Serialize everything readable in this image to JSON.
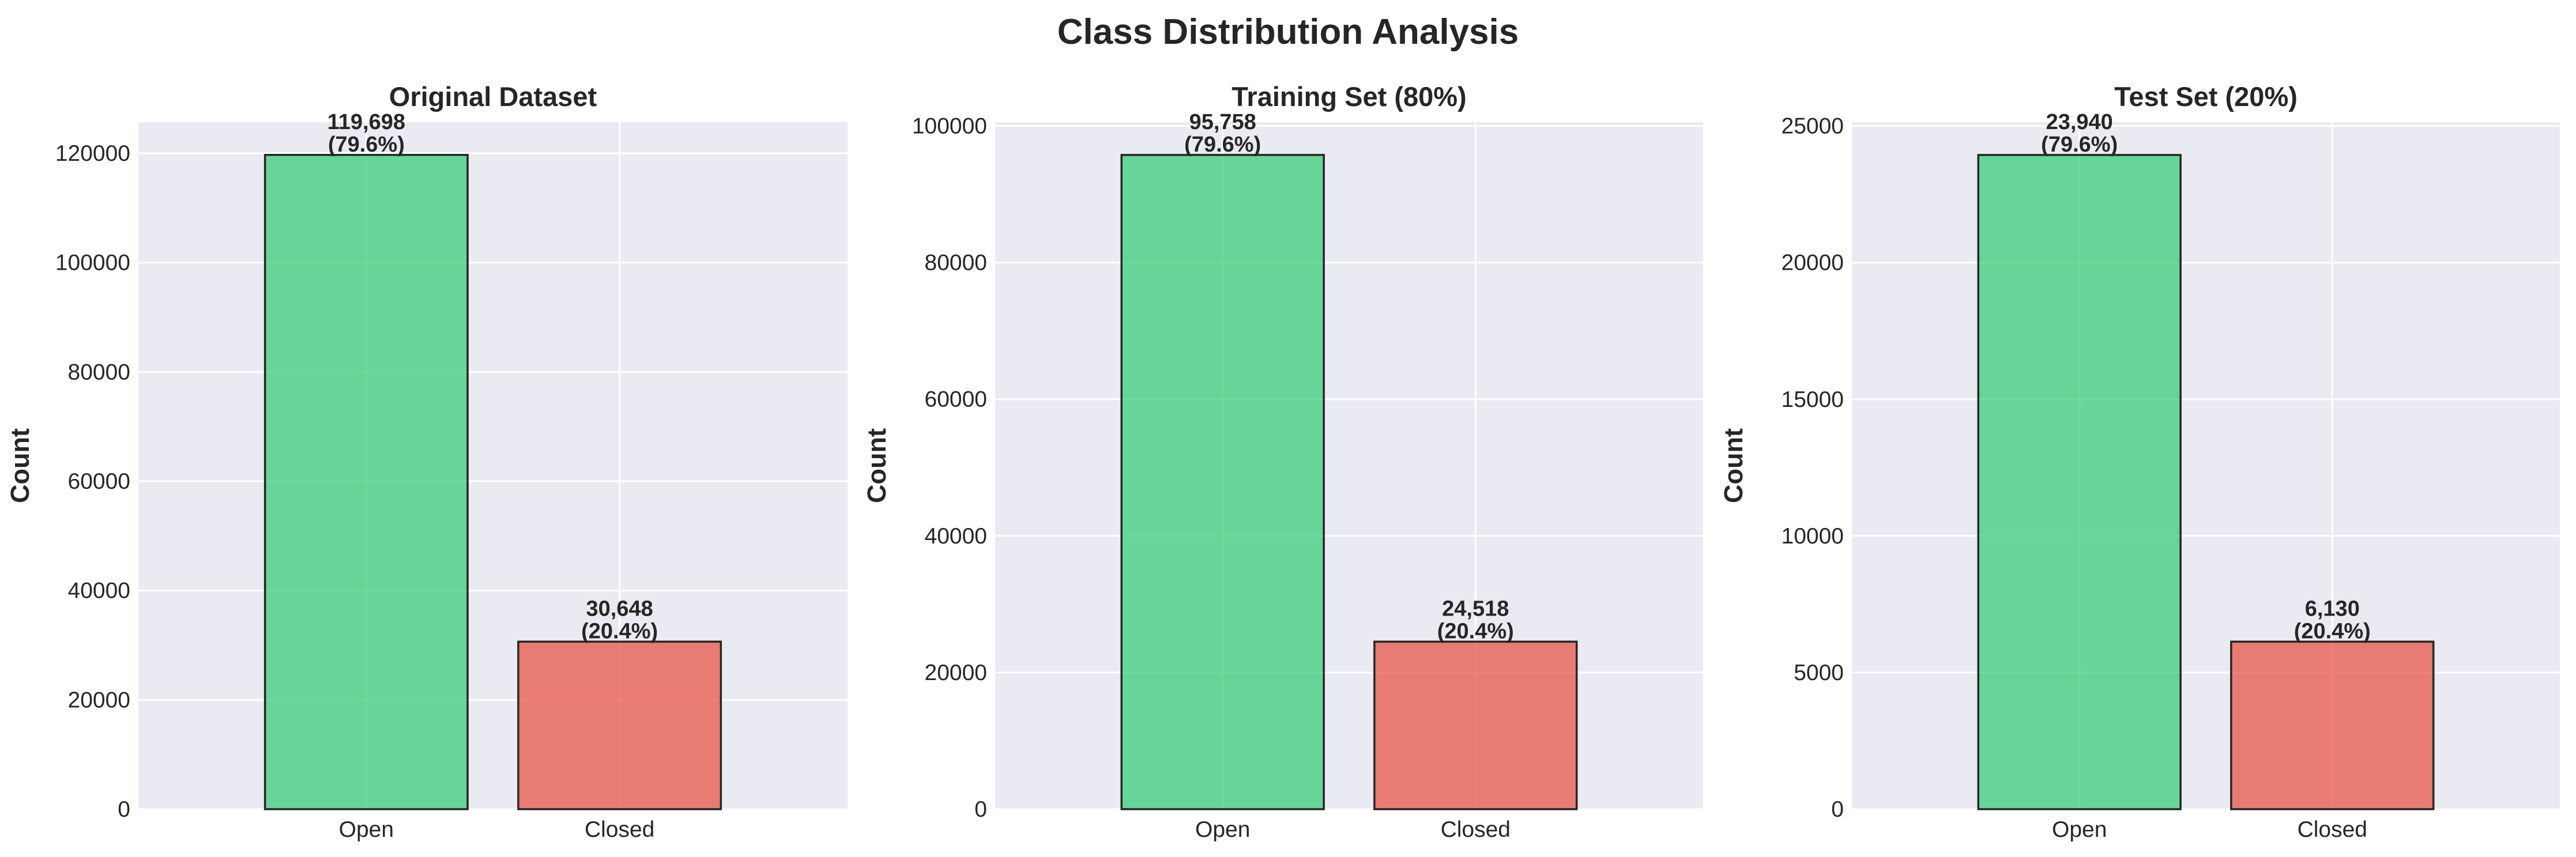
{
  "figure": {
    "title": "Class Distribution Analysis"
  },
  "chart_data": [
    {
      "type": "bar",
      "title": "Original Dataset",
      "xlabel": "",
      "ylabel": "Count",
      "categories": [
        "Open",
        "Closed"
      ],
      "values": [
        119698,
        30648
      ],
      "data_labels": [
        [
          "119,698",
          "(79.6%)"
        ],
        [
          "30,648",
          "(20.4%)"
        ]
      ],
      "colors": [
        "#2ecc71",
        "#e74c3c"
      ],
      "ylim": [
        0,
        125685
      ],
      "yticks": [
        0,
        20000,
        40000,
        60000,
        80000,
        100000,
        120000
      ],
      "grid": true
    },
    {
      "type": "bar",
      "title": "Training Set (80%)",
      "xlabel": "",
      "ylabel": "Count",
      "categories": [
        "Open",
        "Closed"
      ],
      "values": [
        95758,
        24518
      ],
      "data_labels": [
        [
          "95,758",
          "(79.6%)"
        ],
        [
          "24,518",
          "(20.4%)"
        ]
      ],
      "colors": [
        "#2ecc71",
        "#e74c3c"
      ],
      "ylim": [
        0,
        100550
      ],
      "yticks": [
        0,
        20000,
        40000,
        60000,
        80000,
        100000
      ],
      "grid": true
    },
    {
      "type": "bar",
      "title": "Test Set (20%)",
      "xlabel": "",
      "ylabel": "Count",
      "categories": [
        "Open",
        "Closed"
      ],
      "values": [
        23940,
        6130
      ],
      "data_labels": [
        [
          "23,940",
          "(79.6%)"
        ],
        [
          "6,130",
          "(20.4%)"
        ]
      ],
      "colors": [
        "#2ecc71",
        "#e74c3c"
      ],
      "ylim": [
        0,
        25140
      ],
      "yticks": [
        0,
        5000,
        10000,
        15000,
        20000,
        25000
      ],
      "grid": true
    }
  ]
}
